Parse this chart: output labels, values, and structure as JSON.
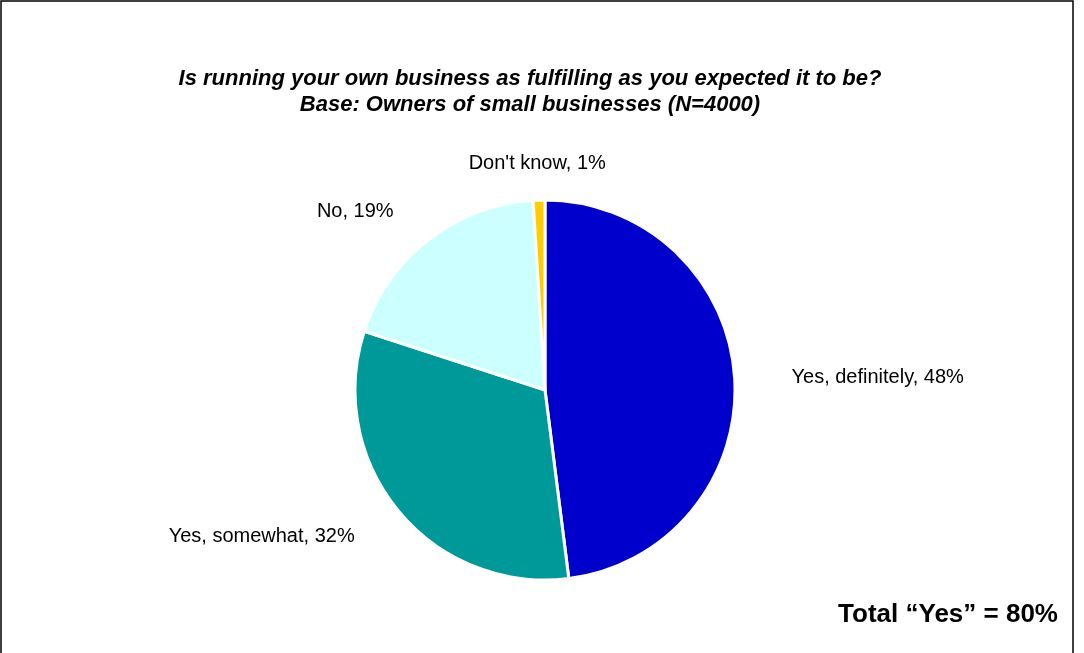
{
  "chart_data": {
    "type": "pie",
    "title": "Is running your own business as fulfilling as you expected it to be?",
    "subtitle": "Base: Owners of small businesses (N=4000)",
    "categories": [
      "Yes, definitely",
      "Yes, somewhat",
      "No",
      "Don't know"
    ],
    "values": [
      48,
      32,
      19,
      1
    ],
    "colors": [
      "#0000cc",
      "#009999",
      "#ccffff",
      "#ffcc00"
    ],
    "value_labels": [
      "48%",
      "32%",
      "19%",
      "1%"
    ],
    "annotations": [
      "Total “Yes” = 80%"
    ]
  }
}
